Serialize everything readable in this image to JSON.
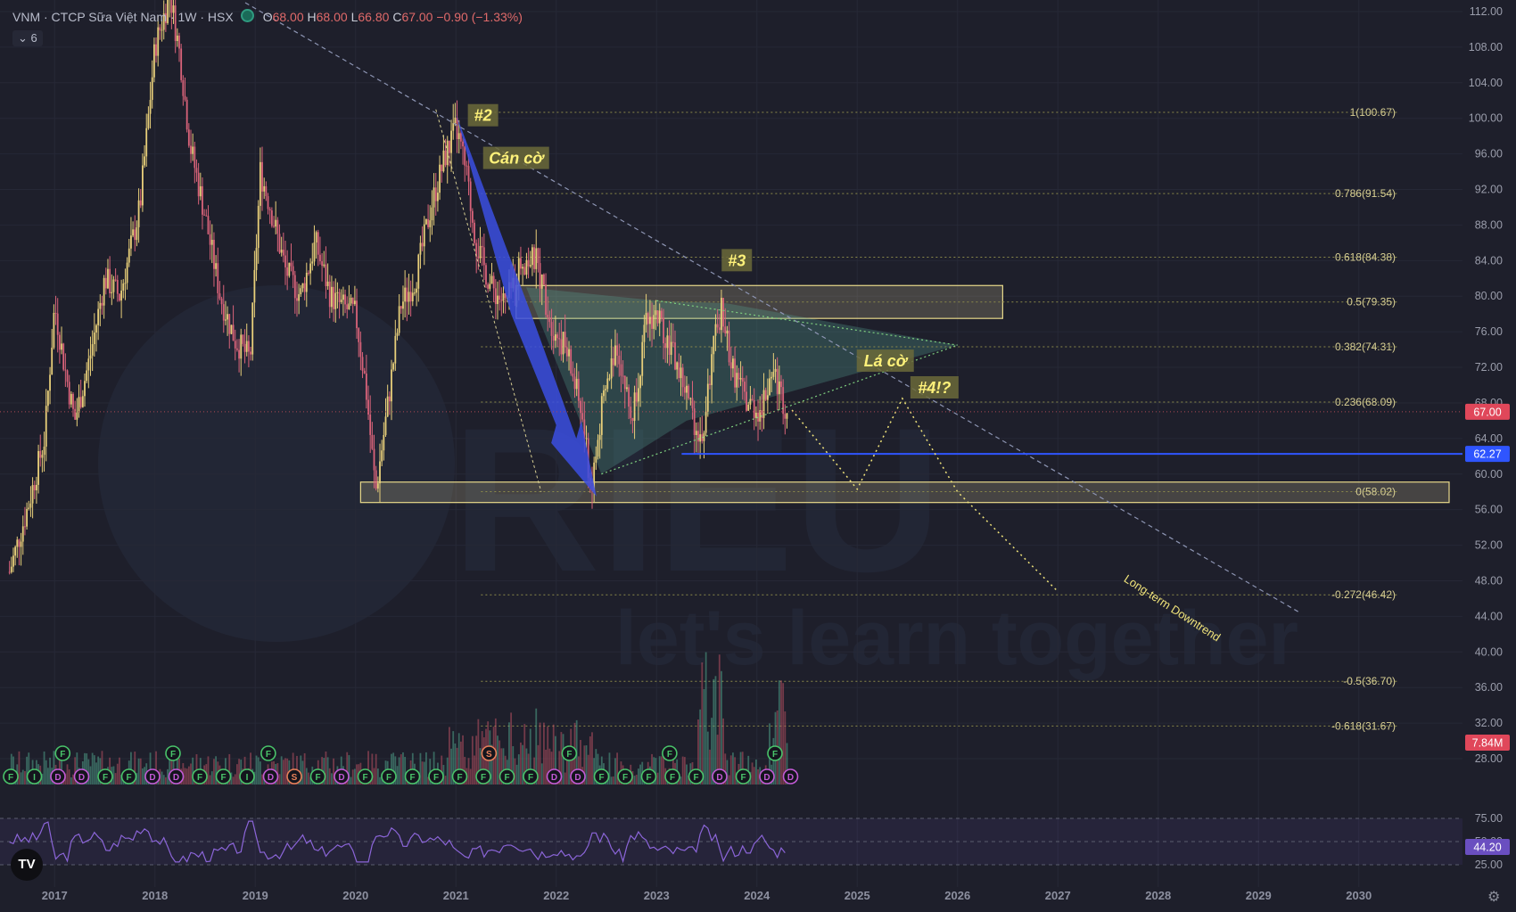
{
  "header": {
    "symbol": "VNM · CTCP Sữa Việt Nam · 1W · HSX",
    "ohlc_open_label": "O",
    "ohlc_open": "68.00",
    "ohlc_high_label": "H",
    "ohlc_high": "68.00",
    "ohlc_low_label": "L",
    "ohlc_low": "66.80",
    "ohlc_close_label": "C",
    "ohlc_close": "67.00",
    "ohlc_change": "−0.90 (−1.33%)",
    "indicator_toggle": "⌄ 6"
  },
  "colors": {
    "background": "#1e1f2b",
    "up_candle": "#e8cf7a",
    "down_candle": "#d9637a",
    "blue_arrow": "#3b4fe0",
    "fib_line": "#8c8a4a",
    "trend_dashed": "#8d95b3",
    "support_line": "#2f55ff",
    "price_badge": "#e0475a",
    "rsi_line": "#8b65d8",
    "zone_fill": "rgba(255,240,180,0.18)"
  },
  "watermark": {
    "brand": "BTRIEU",
    "tagline": "let's learn together"
  },
  "chart_data": {
    "type": "candlestick",
    "timeframe": "1W",
    "y_axis_ticks": [
      "112.00",
      "108.00",
      "104.00",
      "100.00",
      "96.00",
      "92.00",
      "88.00",
      "84.00",
      "80.00",
      "76.00",
      "72.00",
      "68.00",
      "64.00",
      "60.00",
      "56.00",
      "52.00",
      "48.00",
      "44.00",
      "40.00",
      "36.00",
      "32.00",
      "28.00"
    ],
    "y_range": [
      24,
      112
    ],
    "x_axis_ticks": [
      "2017",
      "2018",
      "2019",
      "2020",
      "2021",
      "2022",
      "2023",
      "2024",
      "2025",
      "2026",
      "2027",
      "2028",
      "2029",
      "2030"
    ],
    "price_path": [
      [
        2016.55,
        49
      ],
      [
        2016.75,
        57
      ],
      [
        2016.9,
        64
      ],
      [
        2017.0,
        79
      ],
      [
        2017.1,
        72
      ],
      [
        2017.2,
        66
      ],
      [
        2017.35,
        73
      ],
      [
        2017.5,
        82
      ],
      [
        2017.65,
        80
      ],
      [
        2017.85,
        90
      ],
      [
        2018.0,
        108
      ],
      [
        2018.15,
        114
      ],
      [
        2018.25,
        107
      ],
      [
        2018.35,
        97
      ],
      [
        2018.5,
        89
      ],
      [
        2018.65,
        80
      ],
      [
        2018.8,
        75
      ],
      [
        2018.95,
        73
      ],
      [
        2019.05,
        94
      ],
      [
        2019.15,
        90
      ],
      [
        2019.3,
        83
      ],
      [
        2019.45,
        80
      ],
      [
        2019.6,
        86
      ],
      [
        2019.75,
        80
      ],
      [
        2019.85,
        79
      ],
      [
        2020.0,
        78
      ],
      [
        2020.1,
        70
      ],
      [
        2020.2,
        58
      ],
      [
        2020.3,
        66
      ],
      [
        2020.45,
        79
      ],
      [
        2020.6,
        82
      ],
      [
        2020.75,
        90
      ],
      [
        2020.9,
        96
      ],
      [
        2021.0,
        99
      ],
      [
        2021.1,
        94
      ],
      [
        2021.2,
        86
      ],
      [
        2021.35,
        81
      ],
      [
        2021.5,
        79
      ],
      [
        2021.65,
        84
      ],
      [
        2021.8,
        84
      ],
      [
        2021.95,
        77
      ],
      [
        2022.1,
        74
      ],
      [
        2022.25,
        67
      ],
      [
        2022.35,
        58
      ],
      [
        2022.45,
        67
      ],
      [
        2022.6,
        75
      ],
      [
        2022.75,
        66
      ],
      [
        2022.9,
        77
      ],
      [
        2023.0,
        78
      ],
      [
        2023.15,
        74
      ],
      [
        2023.3,
        69
      ],
      [
        2023.45,
        63
      ],
      [
        2023.55,
        73
      ],
      [
        2023.65,
        79
      ],
      [
        2023.75,
        72
      ],
      [
        2023.9,
        68
      ],
      [
        2024.05,
        67
      ],
      [
        2024.15,
        72
      ],
      [
        2024.3,
        67
      ]
    ],
    "last_price": "67.00",
    "last_price_value": 67.0,
    "support_price": "62.27",
    "support_value": 62.27,
    "volume_badge": "7.84M",
    "fibonacci": [
      {
        "label": "1(100.67)",
        "value": 100.67
      },
      {
        "label": "0.786(91.54)",
        "value": 91.54
      },
      {
        "label": "0.618(84.38)",
        "value": 84.38
      },
      {
        "label": "0.5(79.35)",
        "value": 79.35
      },
      {
        "label": "0.382(74.31)",
        "value": 74.31
      },
      {
        "label": "0.236(68.09)",
        "value": 68.09
      },
      {
        "label": "0(58.02)",
        "value": 58.02
      },
      {
        "label": "-0.272(46.42)",
        "value": 46.42
      },
      {
        "label": "-0.5(36.70)",
        "value": 36.7
      },
      {
        "label": "-0.618(31.67)",
        "value": 31.67
      }
    ],
    "annotations": [
      {
        "text": "#2",
        "x": 2021.27,
        "y": 100.3
      },
      {
        "text": "Cán cờ",
        "x": 2021.6,
        "y": 95.5
      },
      {
        "text": "#3",
        "x": 2023.8,
        "y": 84.0
      },
      {
        "text": "Lá cờ",
        "x": 2025.28,
        "y": 72.7
      },
      {
        "text": "#4!?",
        "x": 2025.77,
        "y": 69.7
      }
    ],
    "trend_label": "Long-term Downtrend",
    "event_markers": [
      "F",
      "I",
      "D",
      "S"
    ],
    "rsi": {
      "levels": [
        "75.00",
        "50.00",
        "25.00"
      ],
      "last": "44.20",
      "range": [
        25,
        75
      ]
    }
  }
}
